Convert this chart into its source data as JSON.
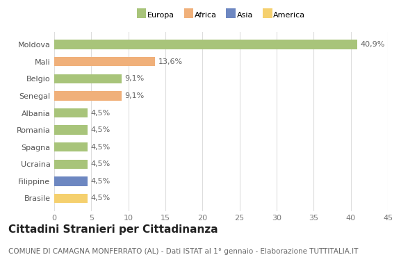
{
  "categories": [
    "Brasile",
    "Filippine",
    "Ucraina",
    "Spagna",
    "Romania",
    "Albania",
    "Senegal",
    "Belgio",
    "Mali",
    "Moldova"
  ],
  "values": [
    4.5,
    4.5,
    4.5,
    4.5,
    4.5,
    4.5,
    9.1,
    9.1,
    13.6,
    40.9
  ],
  "labels": [
    "4,5%",
    "4,5%",
    "4,5%",
    "4,5%",
    "4,5%",
    "4,5%",
    "9,1%",
    "9,1%",
    "13,6%",
    "40,9%"
  ],
  "colors": [
    "#f5d06e",
    "#6d87c1",
    "#a8c47a",
    "#a8c47a",
    "#a8c47a",
    "#a8c47a",
    "#f0b07a",
    "#a8c47a",
    "#f0b07a",
    "#a8c47a"
  ],
  "legend": [
    {
      "label": "Europa",
      "color": "#a8c47a"
    },
    {
      "label": "Africa",
      "color": "#f0b07a"
    },
    {
      "label": "Asia",
      "color": "#6d87c1"
    },
    {
      "label": "America",
      "color": "#f5d06e"
    }
  ],
  "xlim": [
    0,
    45
  ],
  "xticks": [
    0,
    5,
    10,
    15,
    20,
    25,
    30,
    35,
    40,
    45
  ],
  "title": "Cittadini Stranieri per Cittadinanza",
  "subtitle": "COMUNE DI CAMAGNA MONFERRATO (AL) - Dati ISTAT al 1° gennaio - Elaborazione TUTTITALIA.IT",
  "background_color": "#ffffff",
  "grid_color": "#dddddd",
  "bar_height": 0.55,
  "label_fontsize": 8,
  "title_fontsize": 11,
  "subtitle_fontsize": 7.5,
  "tick_fontsize": 8,
  "ytick_fontsize": 8
}
